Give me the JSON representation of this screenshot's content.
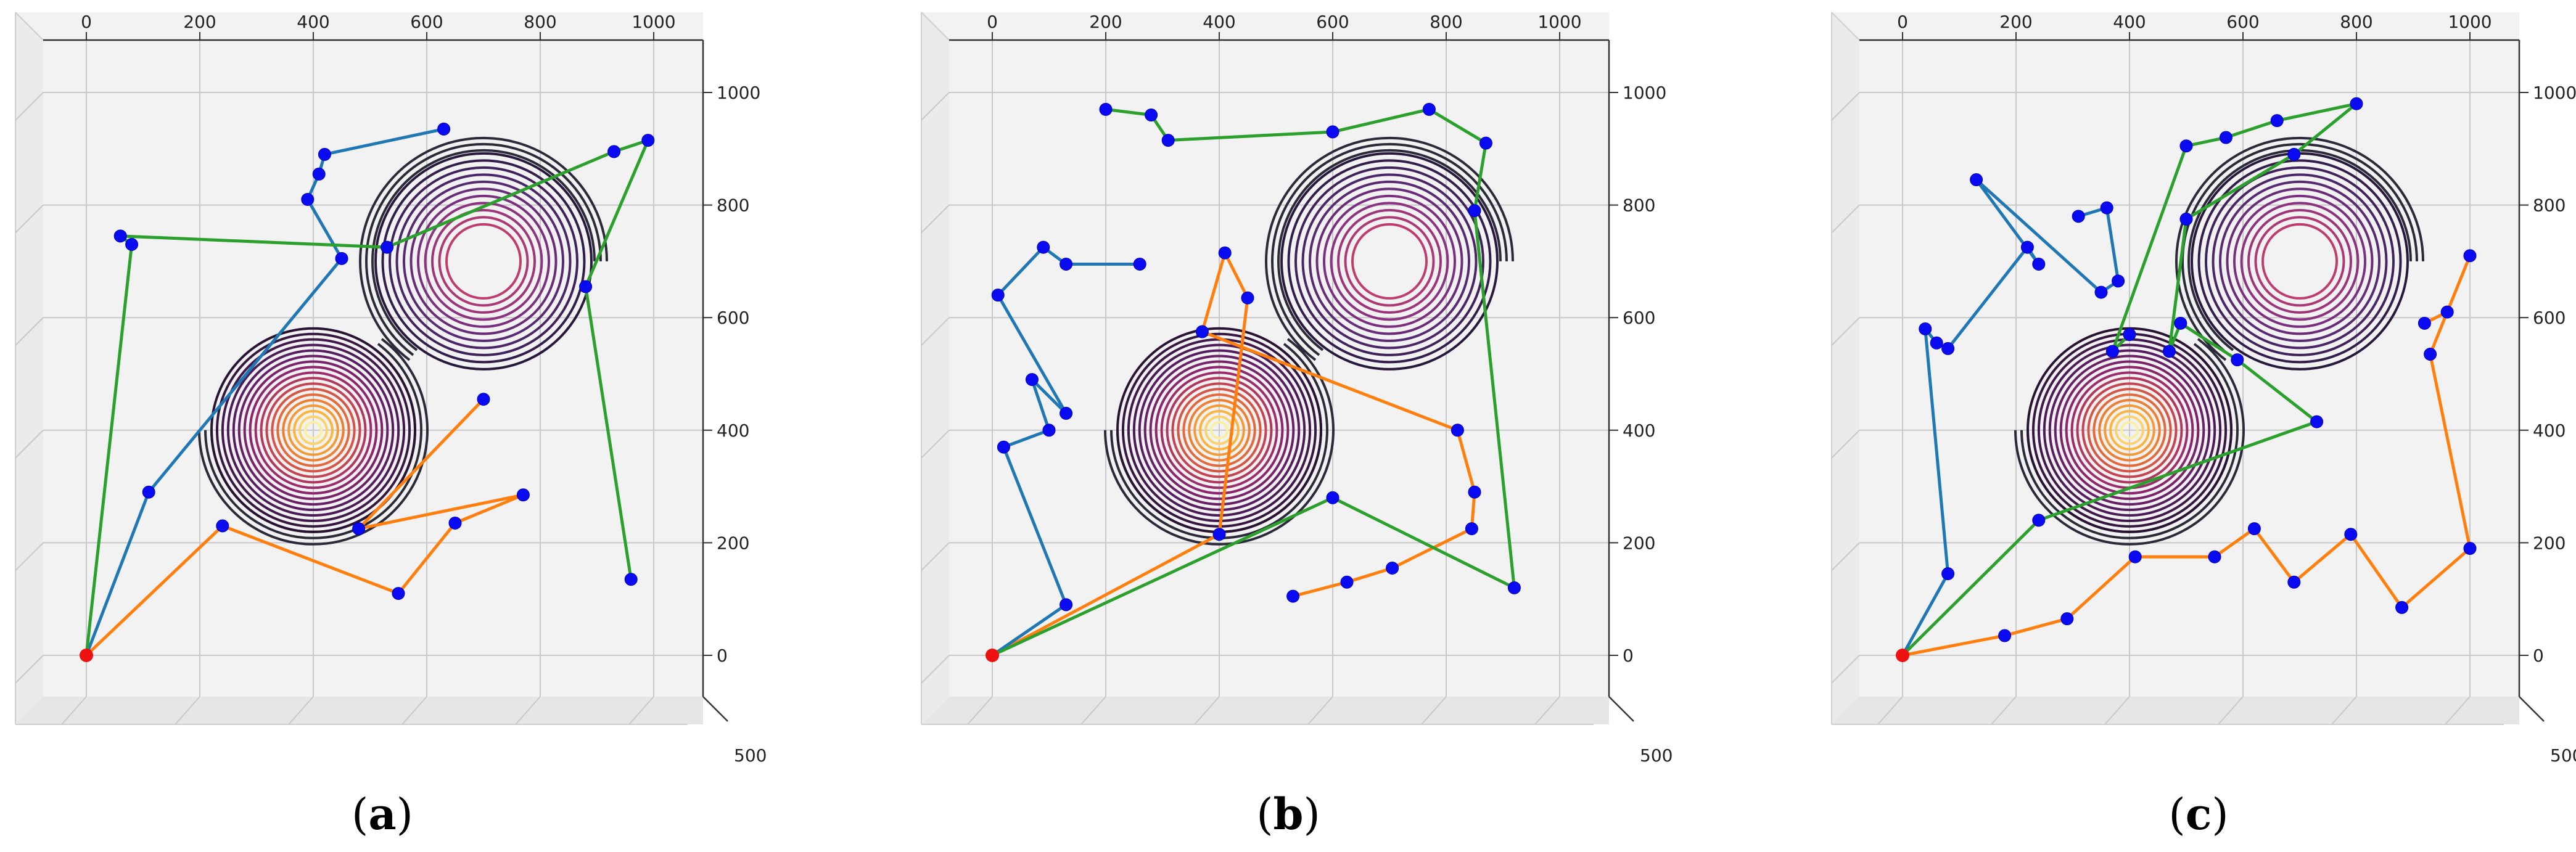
{
  "chart_data": [
    {
      "type": "line",
      "panel_label": "a",
      "xlim": [
        0,
        1000
      ],
      "ylim": [
        0,
        1000
      ],
      "x_ticks": [
        "0",
        "200",
        "400",
        "600",
        "800",
        "1000"
      ],
      "y_ticks": [
        "0",
        "200",
        "400",
        "600",
        "800",
        "1000"
      ],
      "depth_tick": "500",
      "surface": {
        "type": "contour",
        "peaks": [
          {
            "x": 400,
            "y": 400
          },
          {
            "x": 700,
            "y": 700
          }
        ]
      },
      "start": {
        "x": 0,
        "y": 0
      },
      "series": [
        {
          "color": "#ff7f0e",
          "points": [
            [
              0,
              0
            ],
            [
              240,
              230
            ],
            [
              550,
              110
            ],
            [
              650,
              235
            ],
            [
              770,
              285
            ],
            [
              480,
              225
            ],
            [
              700,
              455
            ]
          ]
        },
        {
          "color": "#1f77b4",
          "points": [
            [
              0,
              0
            ],
            [
              110,
              290
            ],
            [
              450,
              705
            ],
            [
              390,
              810
            ],
            [
              410,
              855
            ],
            [
              420,
              890
            ],
            [
              630,
              935
            ]
          ]
        },
        {
          "color": "#2ca02c",
          "points": [
            [
              0,
              0
            ],
            [
              80,
              730
            ],
            [
              60,
              745
            ],
            [
              530,
              725
            ],
            [
              930,
              895
            ],
            [
              990,
              915
            ],
            [
              880,
              655
            ],
            [
              960,
              135
            ]
          ]
        }
      ]
    },
    {
      "type": "line",
      "panel_label": "b",
      "xlim": [
        0,
        1000
      ],
      "ylim": [
        0,
        1000
      ],
      "x_ticks": [
        "0",
        "200",
        "400",
        "600",
        "800",
        "1000"
      ],
      "y_ticks": [
        "0",
        "200",
        "400",
        "600",
        "800",
        "1000"
      ],
      "depth_tick": "500",
      "surface": {
        "type": "contour",
        "peaks": [
          {
            "x": 400,
            "y": 400
          },
          {
            "x": 700,
            "y": 700
          }
        ]
      },
      "start": {
        "x": 0,
        "y": 0
      },
      "series": [
        {
          "color": "#ff7f0e",
          "points": [
            [
              0,
              0
            ],
            [
              400,
              215
            ],
            [
              450,
              635
            ],
            [
              410,
              715
            ],
            [
              370,
              575
            ],
            [
              820,
              400
            ],
            [
              850,
              290
            ],
            [
              845,
              225
            ],
            [
              705,
              155
            ],
            [
              625,
              130
            ],
            [
              530,
              105
            ]
          ]
        },
        {
          "color": "#1f77b4",
          "points": [
            [
              0,
              0
            ],
            [
              130,
              90
            ],
            [
              20,
              370
            ],
            [
              100,
              400
            ],
            [
              70,
              490
            ],
            [
              130,
              430
            ],
            [
              10,
              640
            ],
            [
              90,
              725
            ],
            [
              130,
              695
            ],
            [
              260,
              695
            ]
          ]
        },
        {
          "color": "#2ca02c",
          "points": [
            [
              0,
              0
            ],
            [
              600,
              280
            ],
            [
              920,
              120
            ],
            [
              850,
              790
            ],
            [
              870,
              910
            ],
            [
              770,
              970
            ],
            [
              600,
              930
            ],
            [
              310,
              915
            ],
            [
              280,
              960
            ],
            [
              200,
              970
            ]
          ]
        }
      ]
    },
    {
      "type": "line",
      "panel_label": "c",
      "xlim": [
        0,
        1000
      ],
      "ylim": [
        0,
        1000
      ],
      "x_ticks": [
        "0",
        "200",
        "400",
        "600",
        "800",
        "1000"
      ],
      "y_ticks": [
        "0",
        "200",
        "400",
        "600",
        "800",
        "1000"
      ],
      "depth_tick": "500",
      "surface": {
        "type": "contour",
        "peaks": [
          {
            "x": 400,
            "y": 400
          },
          {
            "x": 700,
            "y": 700
          }
        ]
      },
      "start": {
        "x": 0,
        "y": 0
      },
      "series": [
        {
          "color": "#ff7f0e",
          "points": [
            [
              0,
              0
            ],
            [
              180,
              35
            ],
            [
              290,
              65
            ],
            [
              410,
              175
            ],
            [
              550,
              175
            ],
            [
              620,
              225
            ],
            [
              690,
              130
            ],
            [
              790,
              215
            ],
            [
              880,
              85
            ],
            [
              1000,
              190
            ],
            [
              930,
              535
            ],
            [
              1000,
              710
            ],
            [
              960,
              610
            ],
            [
              920,
              590
            ]
          ]
        },
        {
          "color": "#1f77b4",
          "points": [
            [
              0,
              0
            ],
            [
              80,
              145
            ],
            [
              40,
              580
            ],
            [
              60,
              555
            ],
            [
              80,
              545
            ],
            [
              220,
              725
            ],
            [
              240,
              695
            ],
            [
              130,
              845
            ],
            [
              350,
              645
            ],
            [
              380,
              665
            ],
            [
              360,
              795
            ],
            [
              310,
              780
            ]
          ]
        },
        {
          "color": "#2ca02c",
          "points": [
            [
              0,
              0
            ],
            [
              240,
              240
            ],
            [
              730,
              415
            ],
            [
              590,
              525
            ],
            [
              490,
              590
            ],
            [
              470,
              540
            ],
            [
              500,
              775
            ],
            [
              690,
              890
            ],
            [
              800,
              980
            ],
            [
              660,
              950
            ],
            [
              570,
              920
            ],
            [
              500,
              905
            ],
            [
              370,
              540
            ],
            [
              400,
              570
            ]
          ]
        }
      ]
    }
  ]
}
